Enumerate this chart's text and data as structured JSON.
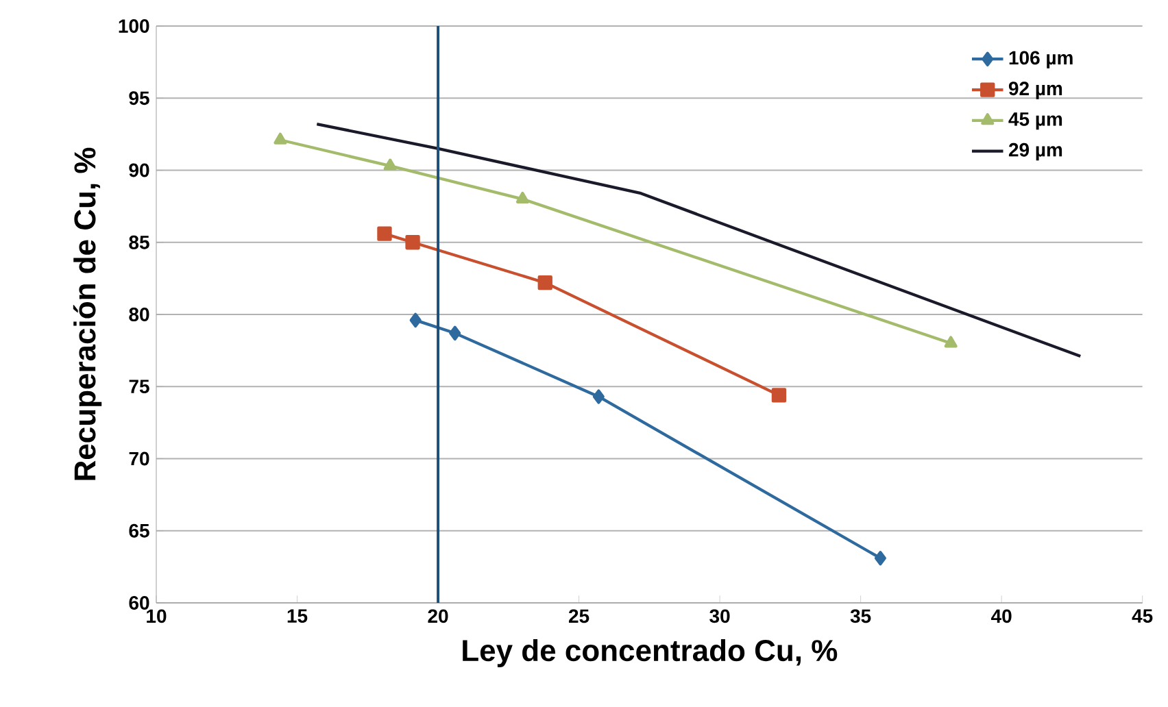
{
  "chart_data": {
    "type": "line",
    "xlabel": "Ley de concentrado Cu, %",
    "ylabel": "Recuperación de Cu, %",
    "xlim": [
      10,
      45
    ],
    "xticks": [
      10,
      15,
      20,
      25,
      30,
      35,
      40,
      45
    ],
    "ylim": [
      60,
      100
    ],
    "yticks": [
      60,
      65,
      70,
      75,
      80,
      85,
      90,
      95,
      100
    ],
    "grid": "y",
    "legend": "top right",
    "line_style": "solid",
    "ref_lines": [
      {
        "axis": "x",
        "value": 20,
        "color": "#1f4e79"
      }
    ],
    "series": [
      {
        "name": "106 µm",
        "color": "#2f6a9e",
        "marker": "diamond",
        "x": [
          19.2,
          20.6,
          25.7,
          35.7
        ],
        "values": [
          79.6,
          78.7,
          74.3,
          63.1
        ]
      },
      {
        "name": "92 µm",
        "color": "#c9502e",
        "marker": "square",
        "x": [
          18.1,
          19.1,
          23.8,
          32.1
        ],
        "values": [
          85.6,
          85.0,
          82.2,
          74.4
        ]
      },
      {
        "name": "45 µm",
        "color": "#a3bb6a",
        "marker": "triangle",
        "x": [
          14.4,
          18.3,
          23.0,
          38.2
        ],
        "values": [
          92.1,
          90.3,
          88.0,
          78.0
        ]
      },
      {
        "name": "29 µm",
        "color": "#1a1a2a",
        "marker": "none",
        "x": [
          15.7,
          20.0,
          27.2,
          32.0,
          42.8
        ],
        "values": [
          93.2,
          91.5,
          88.4,
          84.9,
          77.1
        ]
      }
    ]
  }
}
